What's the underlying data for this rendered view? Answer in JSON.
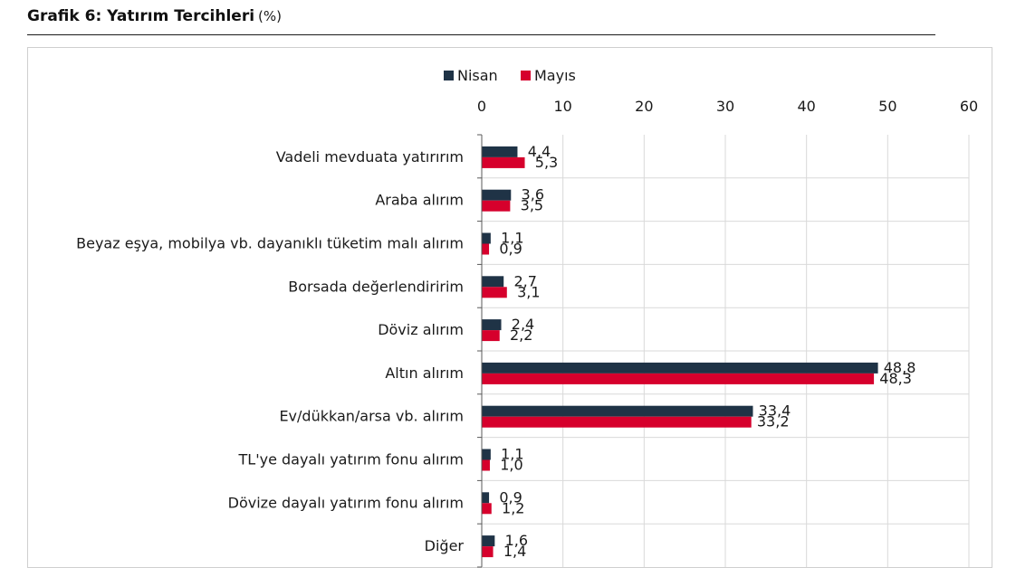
{
  "header": {
    "title": "Grafik 6: Yatırım Tercihleri",
    "unit": "(%)"
  },
  "colors": {
    "nisan": "#1f3346",
    "mayis": "#d6002c",
    "grid": "#d9d9d9",
    "axis": "#595959",
    "text": "#1a1a1a"
  },
  "chart_data": {
    "type": "bar",
    "orientation": "horizontal",
    "title": "Grafik 6: Yatırım Tercihleri (%)",
    "xlim": [
      0,
      60
    ],
    "xticks": [
      "0",
      "10",
      "20",
      "30",
      "40",
      "50",
      "60"
    ],
    "xtick_values": [
      0,
      10,
      20,
      30,
      40,
      50,
      60
    ],
    "xaxis_position": "top",
    "grid": true,
    "legend_position": "top-center",
    "categories": [
      "Vadeli mevduata yatırırım",
      "Araba alırım",
      "Beyaz eşya, mobilya vb. dayanıklı tüketim malı alırım",
      "Borsada değerlendiririm",
      "Döviz alırım",
      "Altın alırım",
      "Ev/dükkan/arsa vb. alırım",
      "TL'ye dayalı yatırım fonu alırım",
      "Dövize dayalı yatırım fonu alırım",
      "Diğer"
    ],
    "series": [
      {
        "name": "Nisan",
        "color": "#1f3346",
        "values": [
          4.4,
          3.6,
          1.1,
          2.7,
          2.4,
          48.8,
          33.4,
          1.1,
          0.9,
          1.6
        ],
        "labels": [
          "4,4",
          "3,6",
          "1,1",
          "2,7",
          "2,4",
          "48,8",
          "33,4",
          "1,1",
          "0,9",
          "1,6"
        ]
      },
      {
        "name": "Mayıs",
        "color": "#d6002c",
        "values": [
          5.3,
          3.5,
          0.9,
          3.1,
          2.2,
          48.3,
          33.2,
          1.0,
          1.2,
          1.4
        ],
        "labels": [
          "5,3",
          "3,5",
          "0,9",
          "3,1",
          "2,2",
          "48,3",
          "33,2",
          "1,0",
          "1,2",
          "1,4"
        ]
      }
    ]
  }
}
